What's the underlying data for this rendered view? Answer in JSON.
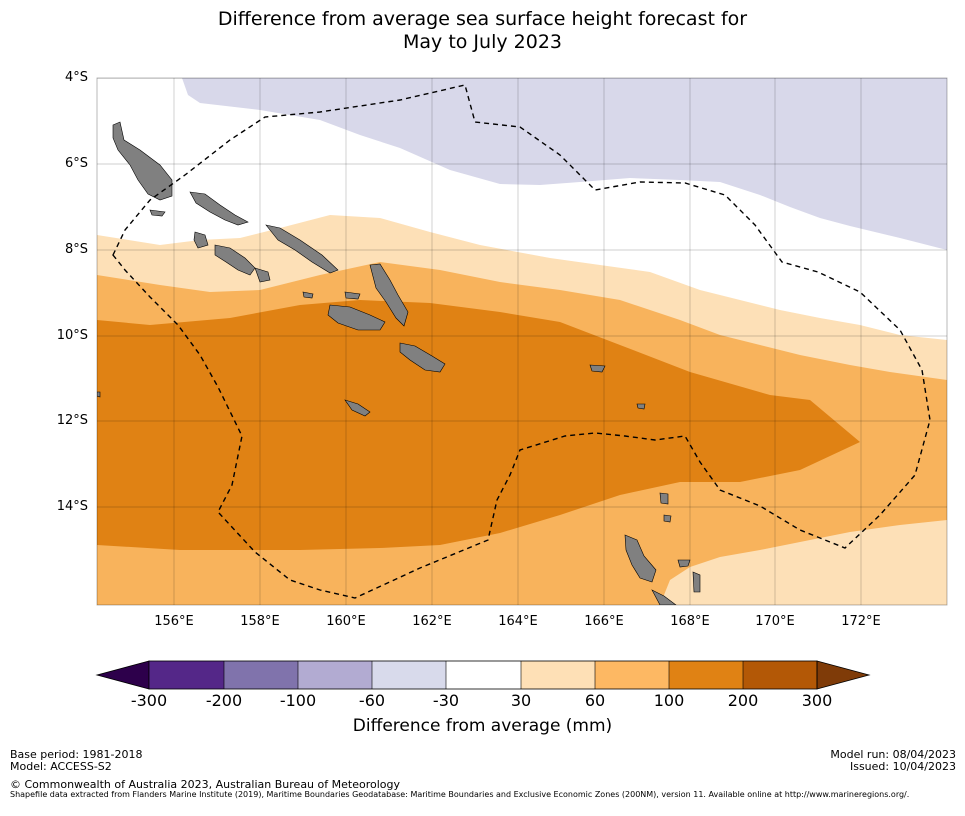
{
  "title": {
    "line1": "Difference from average sea surface height forecast for",
    "line2": "May to July 2023"
  },
  "map": {
    "lat_labels": [
      "4°S",
      "6°S",
      "8°S",
      "10°S",
      "12°S",
      "14°S"
    ],
    "lon_labels": [
      "156°E",
      "158°E",
      "160°E",
      "162°E",
      "164°E",
      "166°E",
      "168°E",
      "170°E",
      "172°E"
    ],
    "extent": {
      "lon_min": 154.2,
      "lon_max": 174.0,
      "lat_min": -16.3,
      "lat_max": -4.0
    },
    "colors": {
      "ocean_neutral": "#ffffff",
      "band_neg_60_30": "#d8d8ea",
      "band_30_60": "#fde0b7",
      "band_60_100": "#f8b35c",
      "band_100_200": "#e08214",
      "land": "#808080",
      "eez_boundary": "#000000"
    }
  },
  "colorbar": {
    "ticks": [
      "-300",
      "-200",
      "-100",
      "-60",
      "-30",
      "30",
      "60",
      "100",
      "200",
      "300"
    ],
    "colors": [
      "#2d004b",
      "#542788",
      "#8073ac",
      "#b2abd2",
      "#d8daeb",
      "#ffffff",
      "#fee0b6",
      "#fdb863",
      "#e08214",
      "#b35806",
      "#7f3b08"
    ],
    "label": "Difference from average (mm)"
  },
  "footer": {
    "base_period": "Base period: 1981-2018",
    "model": "Model: ACCESS-S2",
    "model_run": "Model run: 08/04/2023",
    "issued": "Issued: 10/04/2023",
    "copyright": "© Commonwealth of Australia 2023, Australian Bureau of Meteorology",
    "shapefile_note": "Shapefile data extracted from Flanders Marine Institute (2019), Maritime Boundaries Geodatabase: Maritime Boundaries and Exclusive Economic Zones (200NM), version 11. Available online at http://www.marineregions.org/."
  }
}
